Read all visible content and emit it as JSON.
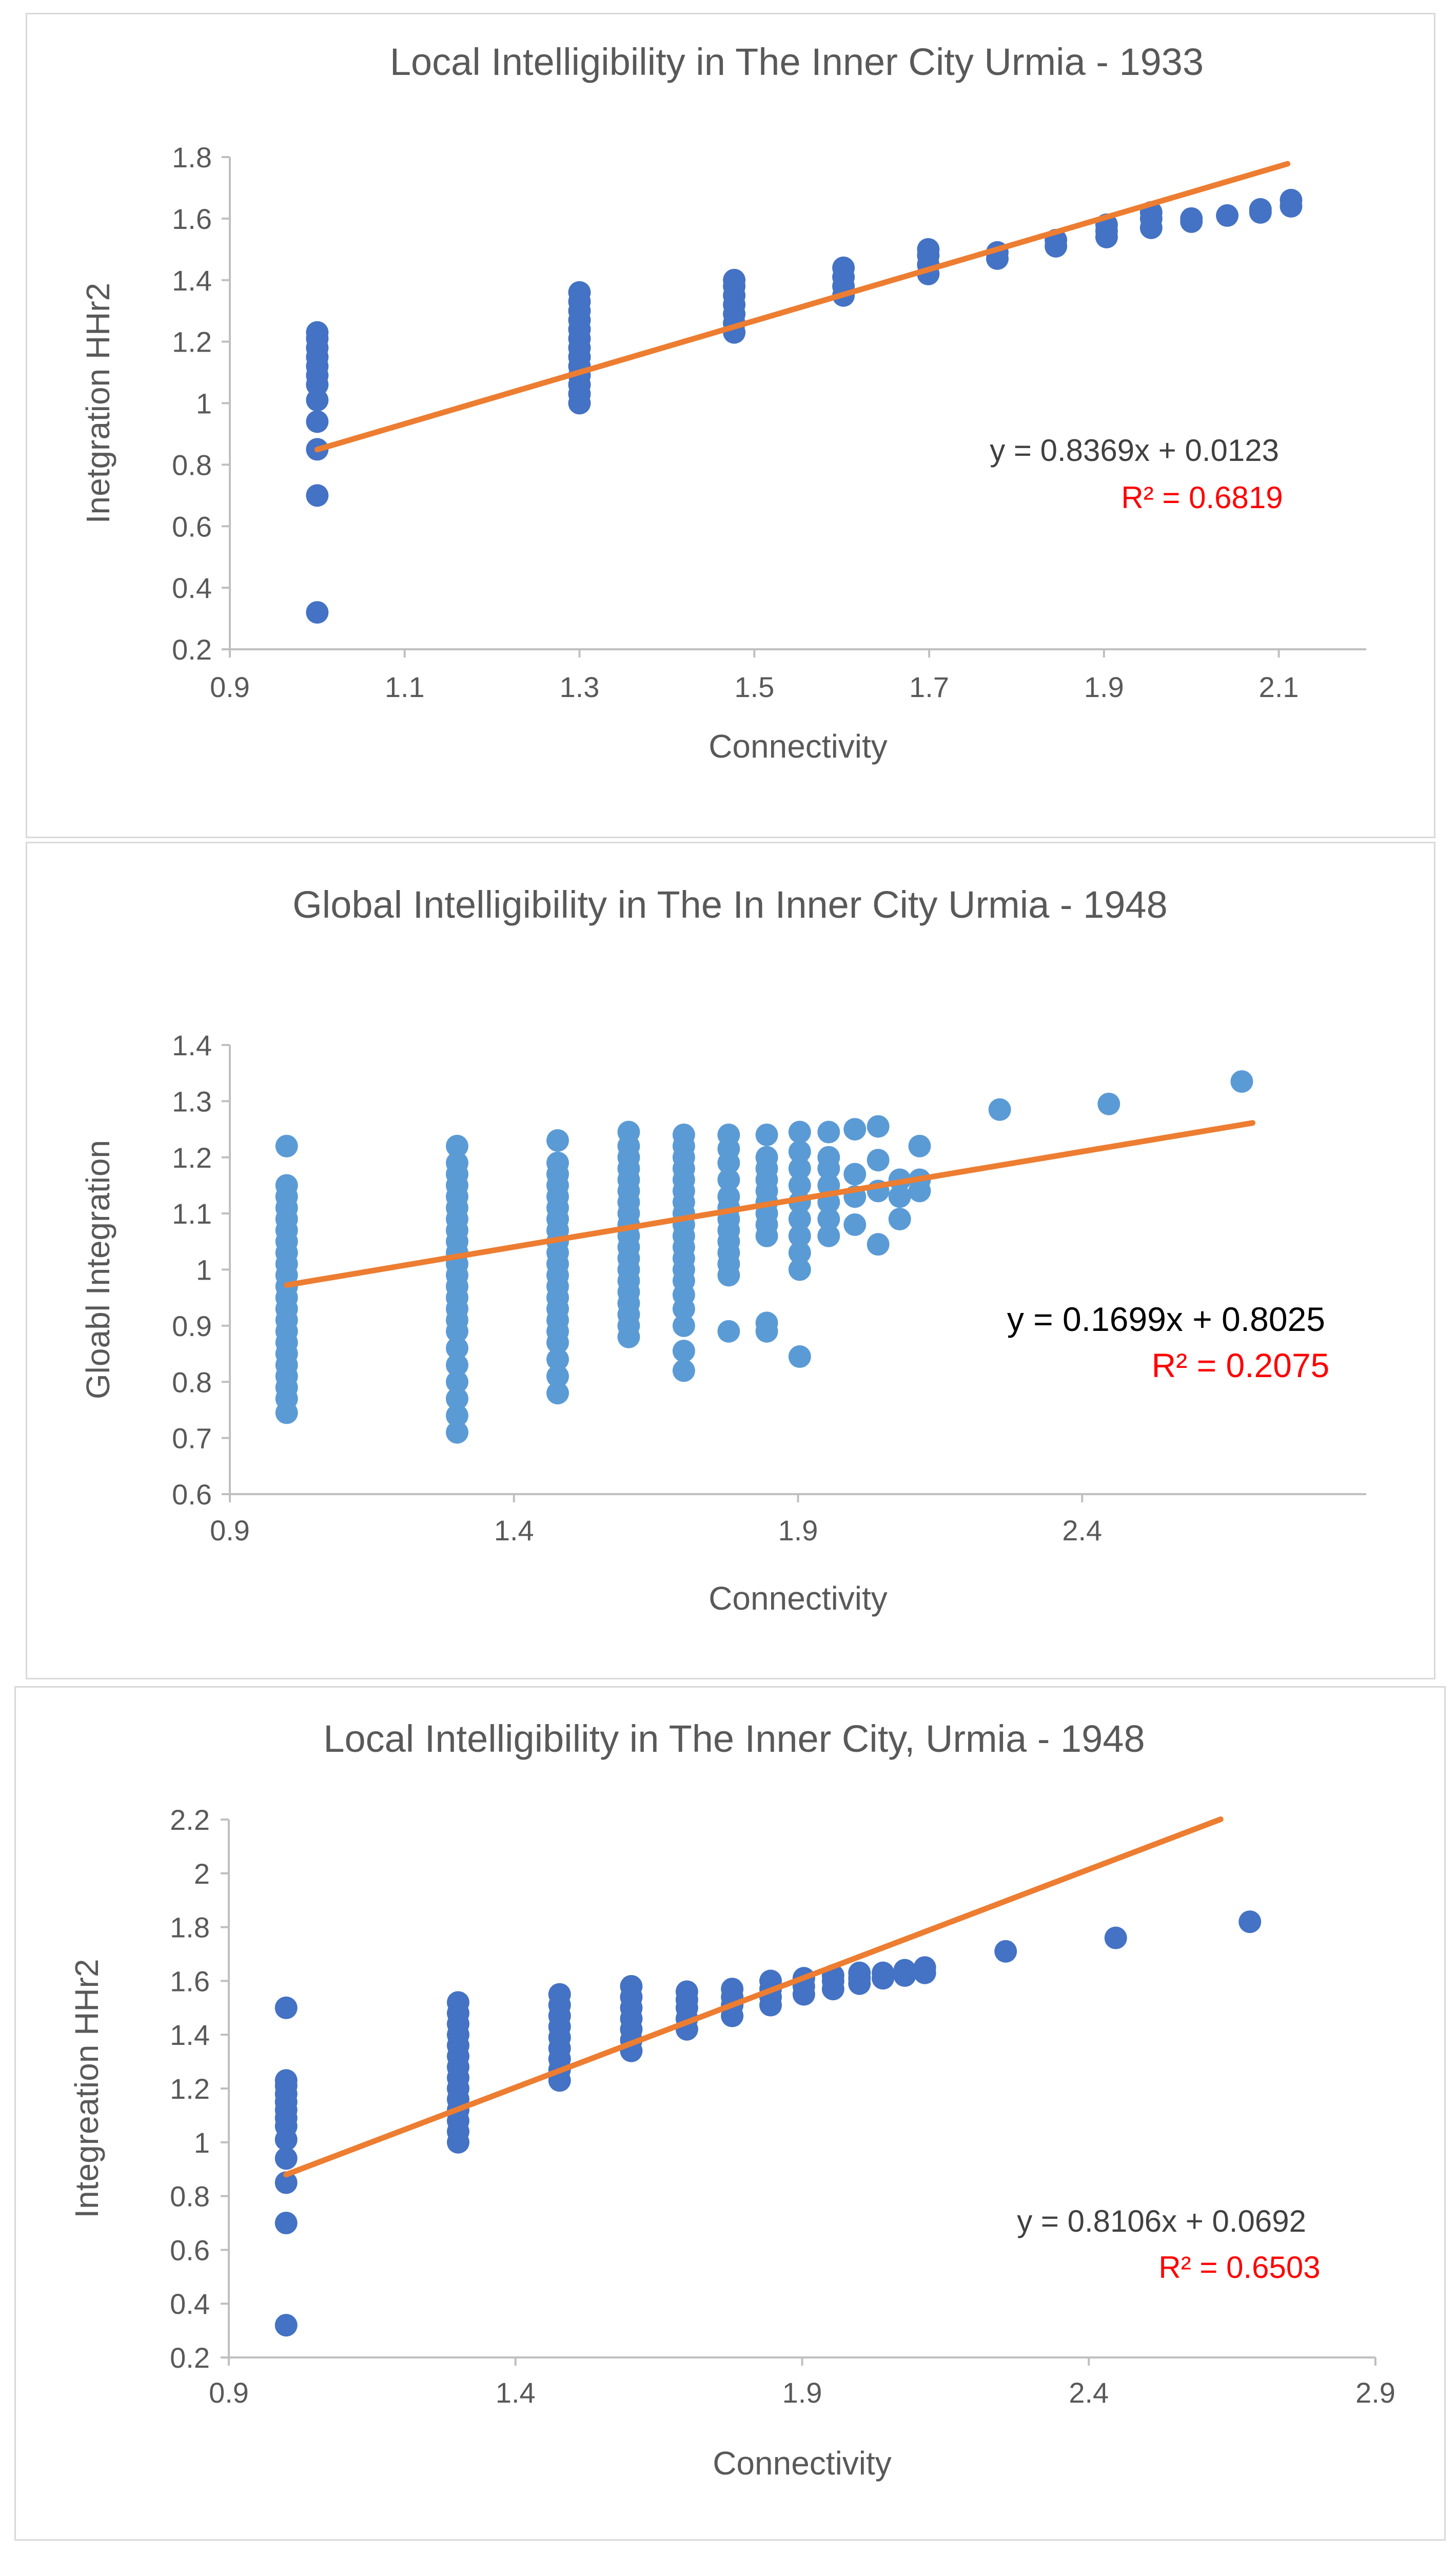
{
  "chart_data": [
    {
      "type": "scatter",
      "title": "Local Intelligibility in The Inner City Urmia - 1933",
      "xlabel": "Connectivity",
      "ylabel": "Inetgration HHr2",
      "xlim": [
        0.9,
        2.2
      ],
      "ylim": [
        0.2,
        1.8
      ],
      "xticks": [
        "0.9",
        "1.1",
        "1.3",
        "1.5",
        "1.7",
        "1.9",
        "2.1"
      ],
      "xtick_values": [
        0.9,
        1.1,
        1.3,
        1.5,
        1.7,
        1.9,
        2.1
      ],
      "yticks": [
        "0.2",
        "0.4",
        "0.6",
        "0.8",
        "1",
        "1.2",
        "1.4",
        "1.6",
        "1.8"
      ],
      "ytick_values": [
        0.2,
        0.4,
        0.6,
        0.8,
        1.0,
        1.2,
        1.4,
        1.6,
        1.8
      ],
      "trendline": {
        "slope": 0.8369,
        "intercept": 0.0123,
        "x_range": [
          1.0,
          2.11
        ]
      },
      "equation": "y = 0.8369x + 0.0123",
      "r_squared": "R² = 0.6819",
      "marker_color": "#4472c4",
      "trend_color": "#ed7d31",
      "r2_color": "#ff0000",
      "eq_color": "#404040",
      "points": [
        [
          1.0,
          0.32
        ],
        [
          1.0,
          0.7
        ],
        [
          1.0,
          0.85
        ],
        [
          1.0,
          0.94
        ],
        [
          1.0,
          1.01
        ],
        [
          1.0,
          1.06
        ],
        [
          1.0,
          1.09
        ],
        [
          1.0,
          1.12
        ],
        [
          1.0,
          1.15
        ],
        [
          1.0,
          1.18
        ],
        [
          1.0,
          1.21
        ],
        [
          1.0,
          1.23
        ],
        [
          1.3,
          1.0
        ],
        [
          1.3,
          1.03
        ],
        [
          1.3,
          1.06
        ],
        [
          1.3,
          1.09
        ],
        [
          1.3,
          1.12
        ],
        [
          1.3,
          1.15
        ],
        [
          1.3,
          1.18
        ],
        [
          1.3,
          1.21
        ],
        [
          1.3,
          1.24
        ],
        [
          1.3,
          1.27
        ],
        [
          1.3,
          1.3
        ],
        [
          1.3,
          1.33
        ],
        [
          1.3,
          1.36
        ],
        [
          1.477,
          1.23
        ],
        [
          1.477,
          1.26
        ],
        [
          1.477,
          1.29
        ],
        [
          1.477,
          1.32
        ],
        [
          1.477,
          1.35
        ],
        [
          1.477,
          1.38
        ],
        [
          1.477,
          1.4
        ],
        [
          1.602,
          1.35
        ],
        [
          1.602,
          1.38
        ],
        [
          1.602,
          1.41
        ],
        [
          1.602,
          1.44
        ],
        [
          1.699,
          1.42
        ],
        [
          1.699,
          1.45
        ],
        [
          1.699,
          1.48
        ],
        [
          1.699,
          1.5
        ],
        [
          1.778,
          1.47
        ],
        [
          1.778,
          1.49
        ],
        [
          1.845,
          1.51
        ],
        [
          1.845,
          1.53
        ],
        [
          1.903,
          1.54
        ],
        [
          1.903,
          1.56
        ],
        [
          1.903,
          1.58
        ],
        [
          1.954,
          1.57
        ],
        [
          1.954,
          1.6
        ],
        [
          1.954,
          1.62
        ],
        [
          2.0,
          1.59
        ],
        [
          2.0,
          1.6
        ],
        [
          2.041,
          1.61
        ],
        [
          2.079,
          1.62
        ],
        [
          2.079,
          1.63
        ],
        [
          2.114,
          1.64
        ],
        [
          2.114,
          1.66
        ]
      ]
    },
    {
      "type": "scatter",
      "title": "Global Intelligibility in The In Inner City Urmia - 1948",
      "xlabel": "Connectivity",
      "ylabel": "Gloabl Integration",
      "xlim": [
        0.9,
        2.9
      ],
      "ylim": [
        0.6,
        1.4
      ],
      "xticks": [
        "0.9",
        "1.4",
        "1.9",
        "2.4"
      ],
      "xtick_values": [
        0.9,
        1.4,
        1.9,
        2.4
      ],
      "yticks": [
        "0.6",
        "0.7",
        "0.8",
        "0.9",
        "1",
        "1.1",
        "1.2",
        "1.3",
        "1.4"
      ],
      "ytick_values": [
        0.6,
        0.7,
        0.8,
        0.9,
        1.0,
        1.1,
        1.2,
        1.3,
        1.4
      ],
      "trendline": {
        "slope": 0.1699,
        "intercept": 0.8025,
        "x_range": [
          1.0,
          2.7
        ]
      },
      "equation": "y = 0.1699x + 0.8025",
      "r_squared": "R² = 0.2075",
      "marker_color": "#5b9bd5",
      "trend_color": "#ed7d31",
      "r2_color": "#ff0000",
      "eq_color": "#000000",
      "points": [
        [
          1.0,
          0.745
        ],
        [
          1.0,
          0.77
        ],
        [
          1.0,
          0.79
        ],
        [
          1.0,
          0.81
        ],
        [
          1.0,
          0.83
        ],
        [
          1.0,
          0.85
        ],
        [
          1.0,
          0.87
        ],
        [
          1.0,
          0.89
        ],
        [
          1.0,
          0.91
        ],
        [
          1.0,
          0.93
        ],
        [
          1.0,
          0.95
        ],
        [
          1.0,
          0.97
        ],
        [
          1.0,
          0.99
        ],
        [
          1.0,
          1.01
        ],
        [
          1.0,
          1.03
        ],
        [
          1.0,
          1.05
        ],
        [
          1.0,
          1.07
        ],
        [
          1.0,
          1.09
        ],
        [
          1.0,
          1.11
        ],
        [
          1.0,
          1.13
        ],
        [
          1.0,
          1.15
        ],
        [
          1.0,
          1.22
        ],
        [
          1.3,
          0.71
        ],
        [
          1.3,
          0.74
        ],
        [
          1.3,
          0.77
        ],
        [
          1.3,
          0.8
        ],
        [
          1.3,
          0.83
        ],
        [
          1.3,
          0.86
        ],
        [
          1.3,
          0.89
        ],
        [
          1.3,
          0.91
        ],
        [
          1.3,
          0.93
        ],
        [
          1.3,
          0.95
        ],
        [
          1.3,
          0.97
        ],
        [
          1.3,
          0.99
        ],
        [
          1.3,
          1.01
        ],
        [
          1.3,
          1.03
        ],
        [
          1.3,
          1.05
        ],
        [
          1.3,
          1.07
        ],
        [
          1.3,
          1.09
        ],
        [
          1.3,
          1.11
        ],
        [
          1.3,
          1.13
        ],
        [
          1.3,
          1.15
        ],
        [
          1.3,
          1.17
        ],
        [
          1.3,
          1.19
        ],
        [
          1.3,
          1.22
        ],
        [
          1.477,
          0.78
        ],
        [
          1.477,
          0.81
        ],
        [
          1.477,
          0.84
        ],
        [
          1.477,
          0.87
        ],
        [
          1.477,
          0.89
        ],
        [
          1.477,
          0.91
        ],
        [
          1.477,
          0.93
        ],
        [
          1.477,
          0.95
        ],
        [
          1.477,
          0.97
        ],
        [
          1.477,
          0.99
        ],
        [
          1.477,
          1.01
        ],
        [
          1.477,
          1.03
        ],
        [
          1.477,
          1.05
        ],
        [
          1.477,
          1.07
        ],
        [
          1.477,
          1.09
        ],
        [
          1.477,
          1.11
        ],
        [
          1.477,
          1.13
        ],
        [
          1.477,
          1.15
        ],
        [
          1.477,
          1.17
        ],
        [
          1.477,
          1.19
        ],
        [
          1.477,
          1.23
        ],
        [
          1.602,
          0.88
        ],
        [
          1.602,
          0.9
        ],
        [
          1.602,
          0.92
        ],
        [
          1.602,
          0.94
        ],
        [
          1.602,
          0.96
        ],
        [
          1.602,
          0.98
        ],
        [
          1.602,
          1.0
        ],
        [
          1.602,
          1.02
        ],
        [
          1.602,
          1.04
        ],
        [
          1.602,
          1.06
        ],
        [
          1.602,
          1.08
        ],
        [
          1.602,
          1.1
        ],
        [
          1.602,
          1.12
        ],
        [
          1.602,
          1.14
        ],
        [
          1.602,
          1.16
        ],
        [
          1.602,
          1.18
        ],
        [
          1.602,
          1.2
        ],
        [
          1.602,
          1.22
        ],
        [
          1.602,
          1.245
        ],
        [
          1.699,
          0.82
        ],
        [
          1.699,
          0.855
        ],
        [
          1.699,
          0.9
        ],
        [
          1.699,
          0.93
        ],
        [
          1.699,
          0.955
        ],
        [
          1.699,
          0.98
        ],
        [
          1.699,
          1.0
        ],
        [
          1.699,
          1.02
        ],
        [
          1.699,
          1.04
        ],
        [
          1.699,
          1.06
        ],
        [
          1.699,
          1.08
        ],
        [
          1.699,
          1.1
        ],
        [
          1.699,
          1.12
        ],
        [
          1.699,
          1.14
        ],
        [
          1.699,
          1.16
        ],
        [
          1.699,
          1.18
        ],
        [
          1.699,
          1.2
        ],
        [
          1.699,
          1.22
        ],
        [
          1.699,
          1.24
        ],
        [
          1.778,
          0.89
        ],
        [
          1.778,
          0.99
        ],
        [
          1.778,
          1.01
        ],
        [
          1.778,
          1.03
        ],
        [
          1.778,
          1.05
        ],
        [
          1.778,
          1.07
        ],
        [
          1.778,
          1.09
        ],
        [
          1.778,
          1.11
        ],
        [
          1.778,
          1.13
        ],
        [
          1.778,
          1.16
        ],
        [
          1.778,
          1.19
        ],
        [
          1.778,
          1.215
        ],
        [
          1.778,
          1.24
        ],
        [
          1.845,
          0.89
        ],
        [
          1.845,
          0.905
        ],
        [
          1.845,
          1.06
        ],
        [
          1.845,
          1.08
        ],
        [
          1.845,
          1.1
        ],
        [
          1.845,
          1.12
        ],
        [
          1.845,
          1.14
        ],
        [
          1.845,
          1.16
        ],
        [
          1.845,
          1.18
        ],
        [
          1.845,
          1.2
        ],
        [
          1.845,
          1.24
        ],
        [
          1.903,
          0.845
        ],
        [
          1.903,
          1.0
        ],
        [
          1.903,
          1.03
        ],
        [
          1.903,
          1.06
        ],
        [
          1.903,
          1.09
        ],
        [
          1.903,
          1.12
        ],
        [
          1.903,
          1.15
        ],
        [
          1.903,
          1.18
        ],
        [
          1.903,
          1.21
        ],
        [
          1.903,
          1.245
        ],
        [
          1.954,
          1.06
        ],
        [
          1.954,
          1.09
        ],
        [
          1.954,
          1.12
        ],
        [
          1.954,
          1.15
        ],
        [
          1.954,
          1.18
        ],
        [
          1.954,
          1.2
        ],
        [
          1.954,
          1.245
        ],
        [
          2.0,
          1.08
        ],
        [
          2.0,
          1.13
        ],
        [
          2.0,
          1.17
        ],
        [
          2.0,
          1.25
        ],
        [
          2.041,
          1.045
        ],
        [
          2.041,
          1.14
        ],
        [
          2.041,
          1.195
        ],
        [
          2.041,
          1.255
        ],
        [
          2.079,
          1.09
        ],
        [
          2.079,
          1.13
        ],
        [
          2.079,
          1.16
        ],
        [
          2.114,
          1.14
        ],
        [
          2.114,
          1.16
        ],
        [
          2.114,
          1.22
        ],
        [
          2.255,
          1.285
        ],
        [
          2.447,
          1.295
        ],
        [
          2.681,
          1.335
        ]
      ]
    },
    {
      "type": "scatter",
      "title": "Local Intelligibility in The Inner City, Urmia - 1948",
      "xlabel": "Connectivity",
      "ylabel": "Integreation  HHr2",
      "xlim": [
        0.9,
        2.9
      ],
      "ylim": [
        0.2,
        2.2
      ],
      "xticks": [
        "0.9",
        "1.4",
        "1.9",
        "2.4",
        "2.9"
      ],
      "xtick_values": [
        0.9,
        1.4,
        1.9,
        2.4,
        2.9
      ],
      "yticks": [
        "0.2",
        "0.4",
        "0.6",
        "0.8",
        "1",
        "1.2",
        "1.4",
        "1.6",
        "1.8",
        "2",
        "2.2"
      ],
      "ytick_values": [
        0.2,
        0.4,
        0.6,
        0.8,
        1.0,
        1.2,
        1.4,
        1.6,
        1.8,
        2.0,
        2.2
      ],
      "trendline": {
        "slope": 0.8106,
        "intercept": 0.0692,
        "x_range": [
          1.0,
          2.63
        ]
      },
      "equation": "y = 0.8106x + 0.0692",
      "r_squared": "R² = 0.6503",
      "marker_color": "#4472c4",
      "trend_color": "#ed7d31",
      "r2_color": "#ff0000",
      "eq_color": "#404040",
      "points": [
        [
          1.0,
          0.32
        ],
        [
          1.0,
          0.7
        ],
        [
          1.0,
          0.85
        ],
        [
          1.0,
          0.94
        ],
        [
          1.0,
          1.01
        ],
        [
          1.0,
          1.06
        ],
        [
          1.0,
          1.09
        ],
        [
          1.0,
          1.12
        ],
        [
          1.0,
          1.15
        ],
        [
          1.0,
          1.18
        ],
        [
          1.0,
          1.21
        ],
        [
          1.0,
          1.23
        ],
        [
          1.0,
          1.5
        ],
        [
          1.3,
          1.0
        ],
        [
          1.3,
          1.04
        ],
        [
          1.3,
          1.08
        ],
        [
          1.3,
          1.12
        ],
        [
          1.3,
          1.16
        ],
        [
          1.3,
          1.2
        ],
        [
          1.3,
          1.24
        ],
        [
          1.3,
          1.28
        ],
        [
          1.3,
          1.32
        ],
        [
          1.3,
          1.36
        ],
        [
          1.3,
          1.4
        ],
        [
          1.3,
          1.44
        ],
        [
          1.3,
          1.48
        ],
        [
          1.3,
          1.52
        ],
        [
          1.477,
          1.23
        ],
        [
          1.477,
          1.27
        ],
        [
          1.477,
          1.31
        ],
        [
          1.477,
          1.35
        ],
        [
          1.477,
          1.39
        ],
        [
          1.477,
          1.43
        ],
        [
          1.477,
          1.47
        ],
        [
          1.477,
          1.51
        ],
        [
          1.477,
          1.55
        ],
        [
          1.602,
          1.34
        ],
        [
          1.602,
          1.38
        ],
        [
          1.602,
          1.42
        ],
        [
          1.602,
          1.46
        ],
        [
          1.602,
          1.5
        ],
        [
          1.602,
          1.54
        ],
        [
          1.602,
          1.58
        ],
        [
          1.699,
          1.42
        ],
        [
          1.699,
          1.46
        ],
        [
          1.699,
          1.5
        ],
        [
          1.699,
          1.53
        ],
        [
          1.699,
          1.56
        ],
        [
          1.778,
          1.47
        ],
        [
          1.778,
          1.51
        ],
        [
          1.778,
          1.54
        ],
        [
          1.778,
          1.57
        ],
        [
          1.845,
          1.51
        ],
        [
          1.845,
          1.54
        ],
        [
          1.845,
          1.57
        ],
        [
          1.845,
          1.6
        ],
        [
          1.903,
          1.55
        ],
        [
          1.903,
          1.58
        ],
        [
          1.903,
          1.61
        ],
        [
          1.954,
          1.57
        ],
        [
          1.954,
          1.6
        ],
        [
          1.954,
          1.62
        ],
        [
          2.0,
          1.59
        ],
        [
          2.0,
          1.61
        ],
        [
          2.0,
          1.63
        ],
        [
          2.041,
          1.61
        ],
        [
          2.041,
          1.63
        ],
        [
          2.079,
          1.62
        ],
        [
          2.079,
          1.64
        ],
        [
          2.114,
          1.63
        ],
        [
          2.114,
          1.65
        ],
        [
          2.255,
          1.71
        ],
        [
          2.447,
          1.76
        ],
        [
          2.681,
          1.82
        ]
      ]
    }
  ]
}
